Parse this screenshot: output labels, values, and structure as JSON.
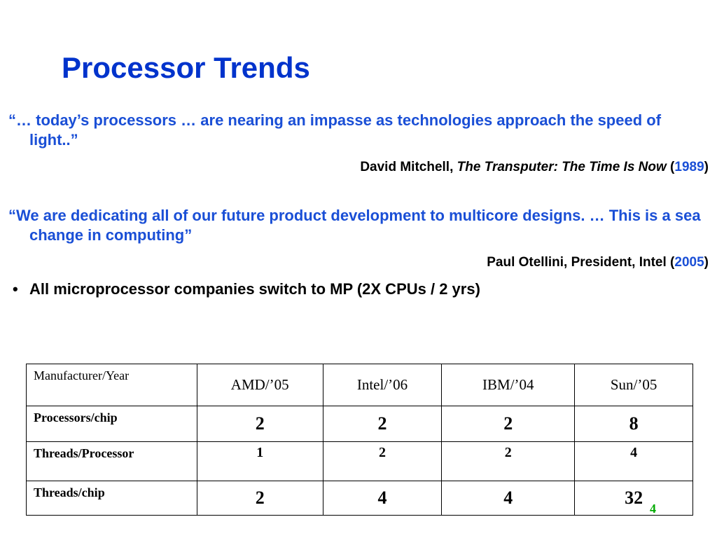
{
  "title": "Processor Trends",
  "quote1": {
    "text": "“… today’s processors … are nearing an impasse as technologies approach the speed of light..”",
    "author": "David Mitchell, ",
    "work": "The Transputer: The Time Is Now",
    "year_open": " (",
    "year": "1989",
    "year_close": ")"
  },
  "quote2": {
    "text": " “We are dedicating all of our future product development to multicore designs. … This is a sea change in computing”",
    "author": "Paul Otellini, President, Intel (",
    "year": "2005",
    "year_close": ")"
  },
  "bullet": {
    "marker": "•",
    "text": "All microprocessor companies switch to MP (2X CPUs / 2 yrs)"
  },
  "table": {
    "headers": [
      "Manufacturer/Year",
      "AMD/’05",
      "Intel/’06",
      "IBM/’04",
      "Sun/’05"
    ],
    "rows": [
      {
        "label": "Processors/chip",
        "values": [
          "2",
          "2",
          "2",
          "8"
        ]
      },
      {
        "label": "Threads/Processor",
        "values": [
          "1",
          "2",
          "2",
          "4"
        ]
      },
      {
        "label": "Threads/chip",
        "values": [
          "2",
          "4",
          "4",
          "32"
        ]
      }
    ]
  },
  "page_number": "4",
  "colors": {
    "title": "#0033cc",
    "quote": "#1a4fd6",
    "page_number": "#00aa00"
  }
}
